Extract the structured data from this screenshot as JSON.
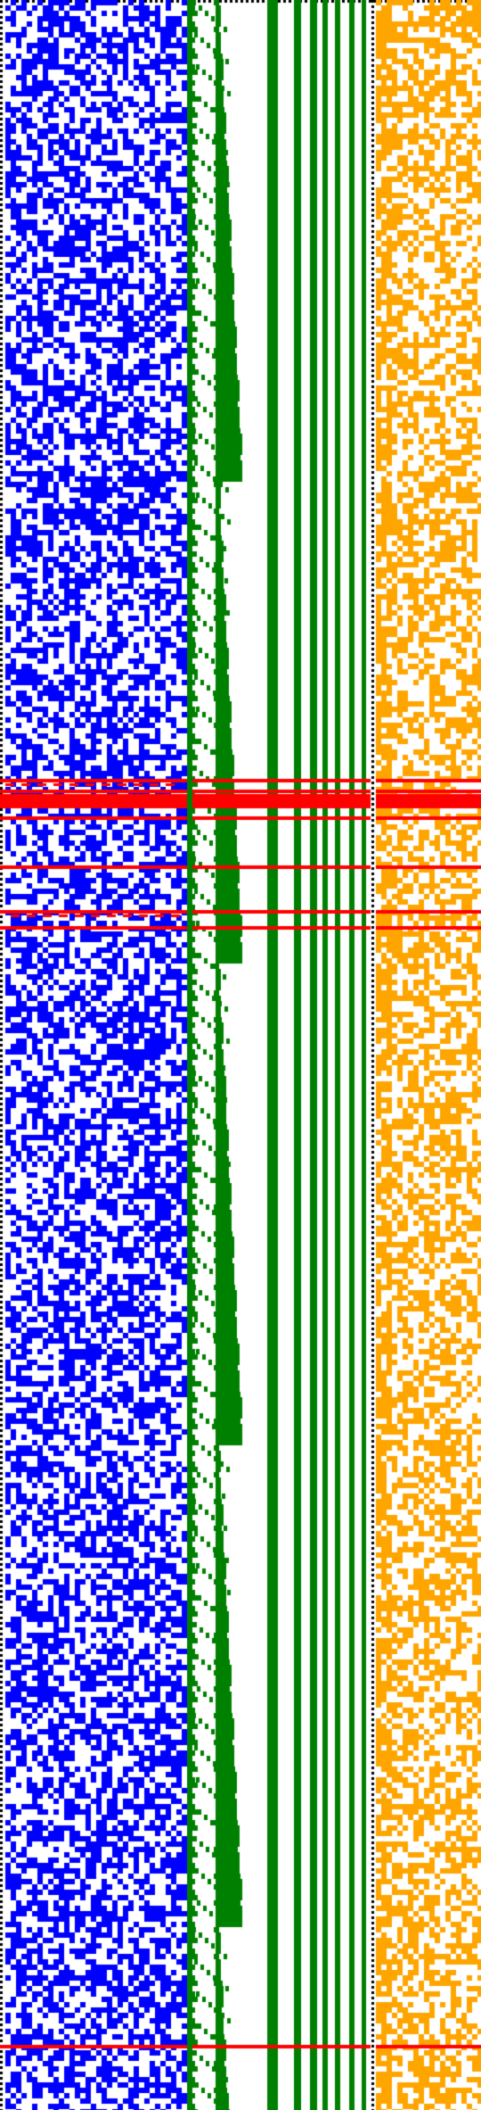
{
  "colors": {
    "background": "#ffffff",
    "left_block": "#0000ff",
    "middle_block": "#008000",
    "right_block": "#ffa500",
    "highlight_rows": "#ff0000",
    "dotted_separator": "#000000"
  },
  "sections": [
    {
      "name": "random-bit-matrix-left",
      "color_key": "left_block"
    },
    {
      "name": "stepped-and-vertical-stripes-middle",
      "color_key": "middle_block"
    },
    {
      "name": "random-bit-matrix-right",
      "color_key": "right_block"
    }
  ],
  "highlight_row_count": 10
}
